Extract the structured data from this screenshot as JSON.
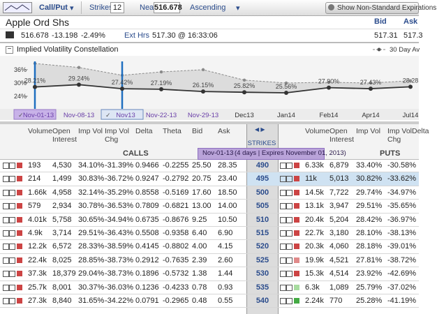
{
  "toolbar": {
    "view": "Call/Put",
    "strikes_label": "Strikes",
    "strikes": "12",
    "near_label": "Near",
    "near": "516.678",
    "sort": "Ascending",
    "button": "Show Non-Standard Expirations"
  },
  "quote": {
    "name": "Apple Ord Shs",
    "last": "516.678",
    "change": "-13.198",
    "change_pct": "-2.49%",
    "ext_label": "Ext Hrs",
    "ext": "517.30 @ 16:33:06",
    "bid_label": "Bid",
    "ask_label": "Ask",
    "bid": "517.31",
    "ask": "517.3"
  },
  "iv_chart": {
    "type": "line",
    "title": "Implied Volatility Constellation",
    "categories": [
      "Nov-01-13",
      "Nov-08-13",
      "Nov13",
      "Nov-22-13",
      "Nov-29-13",
      "Dec13",
      "Jan14",
      "Feb14",
      "Apr14",
      "Jul14"
    ],
    "selected_categories": [
      0,
      2
    ],
    "series": [
      {
        "color": "#333333",
        "values": [
          28.21,
          29.24,
          27.42,
          27.19,
          26.15,
          25.82,
          25.56,
          27.9,
          27.43,
          28.28
        ],
        "value_labels": [
          "28.21%",
          "29.24%",
          "27.42%",
          "27.19%",
          "26.15%",
          "25.82%",
          "25.56%",
          "27.90%",
          "27.43%",
          "28.28"
        ]
      },
      {
        "name": "30 Day Av",
        "color": "#8a8a8a",
        "values": [
          38.8,
          37,
          33.5,
          35,
          36,
          31.3,
          30,
          30.3,
          30,
          31
        ]
      }
    ],
    "ylim": [
      21,
      41
    ],
    "yticks": [
      {
        "value": 24,
        "label": "24%"
      },
      {
        "value": 30,
        "label": "30%"
      },
      {
        "value": 36,
        "label": "36%"
      }
    ]
  },
  "table": {
    "calls_label": "CALLS",
    "puts_label": "PUTS",
    "strikes_header": "STRIKES",
    "expiry": "Nov-01-13",
    "expiry_detail": "(4 days | Expires November 01, 2013)",
    "call_columns": [
      "Volume",
      "Open Interest",
      "Imp Vol",
      "Imp Vol Chg",
      "Delta",
      "Theta",
      "Bid",
      "Ask"
    ],
    "put_columns": [
      "Volume",
      "Open Interest",
      "Imp Vol",
      "Imp Vol Chg",
      "Delta"
    ],
    "highlight_row": 1,
    "rows": [
      {
        "call": [
          "193",
          "4,530",
          "34.10%",
          "-31.39%",
          "0.9466",
          "-0.2255",
          "25.50",
          "28.35"
        ],
        "strike": "490",
        "put": [
          "6.33k",
          "6,879",
          "33.40%",
          "-30.58%"
        ],
        "put_flag": "#cc4444"
      },
      {
        "call": [
          "214",
          "1,499",
          "30.83%",
          "-36.72%",
          "0.9247",
          "-0.2792",
          "20.75",
          "23.40"
        ],
        "strike": "495",
        "put": [
          "11k",
          "5,013",
          "30.82%",
          "-33.62%"
        ],
        "put_flag": "#cc4444"
      },
      {
        "call": [
          "1.66k",
          "4,958",
          "32.14%",
          "-35.29%",
          "0.8558",
          "-0.5169",
          "17.60",
          "18.50"
        ],
        "strike": "500",
        "put": [
          "14.5k",
          "7,722",
          "29.74%",
          "-34.97%"
        ],
        "put_flag": "#cc4444"
      },
      {
        "call": [
          "579",
          "2,934",
          "30.78%",
          "-36.53%",
          "0.7809",
          "-0.6821",
          "13.00",
          "14.00"
        ],
        "strike": "505",
        "put": [
          "13.1k",
          "3,947",
          "29.51%",
          "-35.65%"
        ],
        "put_flag": "#cc4444"
      },
      {
        "call": [
          "4.01k",
          "5,758",
          "30.65%",
          "-34.94%",
          "0.6735",
          "-0.8676",
          "9.25",
          "10.50"
        ],
        "strike": "510",
        "put": [
          "20.4k",
          "5,204",
          "28.42%",
          "-36.97%"
        ],
        "put_flag": "#cc4444"
      },
      {
        "call": [
          "4.9k",
          "3,714",
          "29.51%",
          "-36.43%",
          "0.5508",
          "-0.9358",
          "6.40",
          "6.90"
        ],
        "strike": "515",
        "put": [
          "22.7k",
          "3,180",
          "28.10%",
          "-38.13%"
        ],
        "put_flag": "#cc4444"
      },
      {
        "call": [
          "12.2k",
          "6,572",
          "28.33%",
          "-38.59%",
          "0.4145",
          "-0.8802",
          "4.00",
          "4.15"
        ],
        "strike": "520",
        "put": [
          "20.3k",
          "4,060",
          "28.18%",
          "-39.01%"
        ],
        "put_flag": "#cc4444"
      },
      {
        "call": [
          "22.4k",
          "8,025",
          "28.85%",
          "-38.73%",
          "0.2912",
          "-0.7635",
          "2.39",
          "2.60"
        ],
        "strike": "525",
        "put": [
          "19.9k",
          "4,521",
          "27.81%",
          "-38.72%"
        ],
        "put_flag": "#e08a8a"
      },
      {
        "call": [
          "37.3k",
          "18,379",
          "29.04%",
          "-38.73%",
          "0.1896",
          "-0.5732",
          "1.38",
          "1.44"
        ],
        "strike": "530",
        "put": [
          "15.3k",
          "4,514",
          "23.92%",
          "-42.69%"
        ],
        "put_flag": "#cc4444"
      },
      {
        "call": [
          "25.7k",
          "8,001",
          "30.37%",
          "-36.03%",
          "0.1236",
          "-0.4233",
          "0.78",
          "0.93"
        ],
        "strike": "535",
        "put": [
          "6.3k",
          "1,089",
          "25.79%",
          "-37.02%"
        ],
        "put_flag": "#a8dca0"
      },
      {
        "call": [
          "27.3k",
          "8,840",
          "31.65%",
          "-34.22%",
          "0.0791",
          "-0.2965",
          "0.48",
          "0.55"
        ],
        "strike": "540",
        "put": [
          "2.24k",
          "770",
          "25.28%",
          "-41.19%"
        ],
        "put_flag": "#44aa44"
      }
    ]
  }
}
